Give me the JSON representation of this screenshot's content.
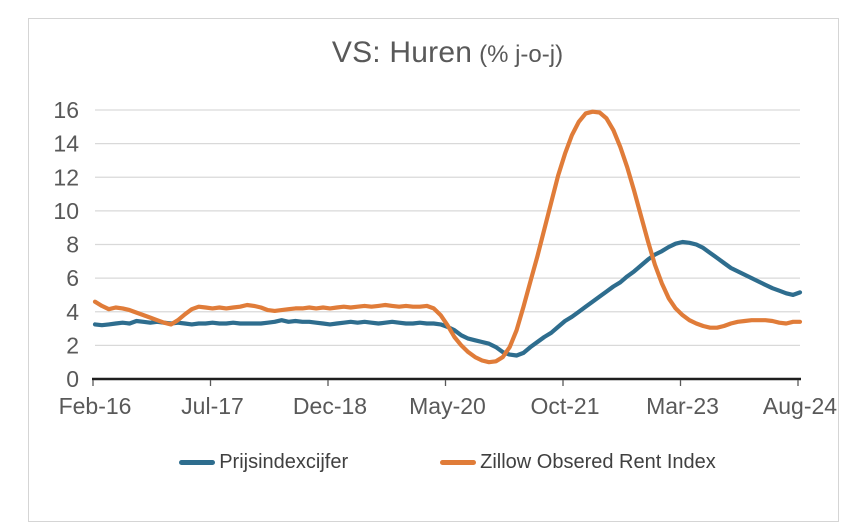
{
  "title": {
    "main": "VS: Huren",
    "sub": "(% j-o-j)"
  },
  "colors": {
    "blue": "#2E6D8E",
    "orange": "#E07C39",
    "grid": "#D9D9D9",
    "axis": "#1f1f1f",
    "tick": "#595959",
    "label_text": "#595959",
    "legend_text": "#404040",
    "frame_border": "#D5D5D5"
  },
  "legend": [
    {
      "label": "Prijsindexcijfer",
      "color": "#2E6D8E"
    },
    {
      "label": "Zillow Obsered Rent Index",
      "color": "#E07C39"
    }
  ],
  "chart_data": {
    "type": "line",
    "title": "VS: Huren (% j-o-j)",
    "xlabel": "",
    "ylabel": "",
    "ylim": [
      0,
      16
    ],
    "y_ticks": [
      0,
      2,
      4,
      6,
      8,
      10,
      12,
      14,
      16
    ],
    "grid": "horizontal",
    "legend_position": "bottom",
    "x_start": "Feb-16",
    "x_end": "Aug-24",
    "x_unit": "month",
    "x_labels": [
      "Feb-16",
      "Jul-17",
      "Dec-18",
      "May-20",
      "Oct-21",
      "Mar-23",
      "Aug-24"
    ],
    "x_label_indices": [
      0,
      17,
      34,
      51,
      68,
      85,
      102
    ],
    "series": [
      {
        "name": "Prijsindexcijfer",
        "color": "#2E6D8E",
        "values": [
          3.25,
          3.2,
          3.25,
          3.3,
          3.35,
          3.3,
          3.45,
          3.4,
          3.35,
          3.4,
          3.35,
          3.3,
          3.35,
          3.3,
          3.25,
          3.3,
          3.3,
          3.35,
          3.3,
          3.3,
          3.35,
          3.3,
          3.3,
          3.3,
          3.3,
          3.35,
          3.4,
          3.5,
          3.4,
          3.45,
          3.4,
          3.4,
          3.35,
          3.3,
          3.25,
          3.3,
          3.35,
          3.4,
          3.35,
          3.4,
          3.35,
          3.3,
          3.35,
          3.4,
          3.35,
          3.3,
          3.3,
          3.35,
          3.3,
          3.3,
          3.25,
          3.1,
          2.9,
          2.6,
          2.4,
          2.3,
          2.2,
          2.1,
          1.9,
          1.6,
          1.45,
          1.4,
          1.55,
          1.9,
          2.2,
          2.5,
          2.75,
          3.1,
          3.45,
          3.7,
          4.0,
          4.3,
          4.6,
          4.9,
          5.2,
          5.5,
          5.75,
          6.1,
          6.4,
          6.75,
          7.1,
          7.4,
          7.6,
          7.85,
          8.05,
          8.15,
          8.1,
          8.0,
          7.8,
          7.5,
          7.2,
          6.9,
          6.6,
          6.4,
          6.2,
          6.0,
          5.8,
          5.6,
          5.4,
          5.25,
          5.1,
          5.0,
          5.15
        ]
      },
      {
        "name": "Zillow Obsered Rent Index",
        "color": "#E07C39",
        "values": [
          4.6,
          4.35,
          4.15,
          4.25,
          4.2,
          4.1,
          3.95,
          3.8,
          3.65,
          3.5,
          3.35,
          3.25,
          3.5,
          3.85,
          4.15,
          4.3,
          4.25,
          4.2,
          4.25,
          4.2,
          4.25,
          4.3,
          4.4,
          4.35,
          4.25,
          4.1,
          4.05,
          4.1,
          4.15,
          4.2,
          4.2,
          4.25,
          4.2,
          4.25,
          4.2,
          4.25,
          4.3,
          4.25,
          4.3,
          4.35,
          4.3,
          4.35,
          4.4,
          4.35,
          4.3,
          4.35,
          4.3,
          4.3,
          4.35,
          4.2,
          3.8,
          3.2,
          2.5,
          2.0,
          1.6,
          1.3,
          1.1,
          1.0,
          1.05,
          1.3,
          1.9,
          2.9,
          4.3,
          5.8,
          7.3,
          8.9,
          10.5,
          12.1,
          13.4,
          14.5,
          15.3,
          15.8,
          15.9,
          15.85,
          15.5,
          14.8,
          13.8,
          12.6,
          11.2,
          9.7,
          8.2,
          6.8,
          5.7,
          4.8,
          4.2,
          3.8,
          3.5,
          3.3,
          3.15,
          3.05,
          3.05,
          3.15,
          3.3,
          3.4,
          3.45,
          3.5,
          3.5,
          3.5,
          3.45,
          3.35,
          3.3,
          3.4,
          3.4
        ]
      }
    ]
  }
}
